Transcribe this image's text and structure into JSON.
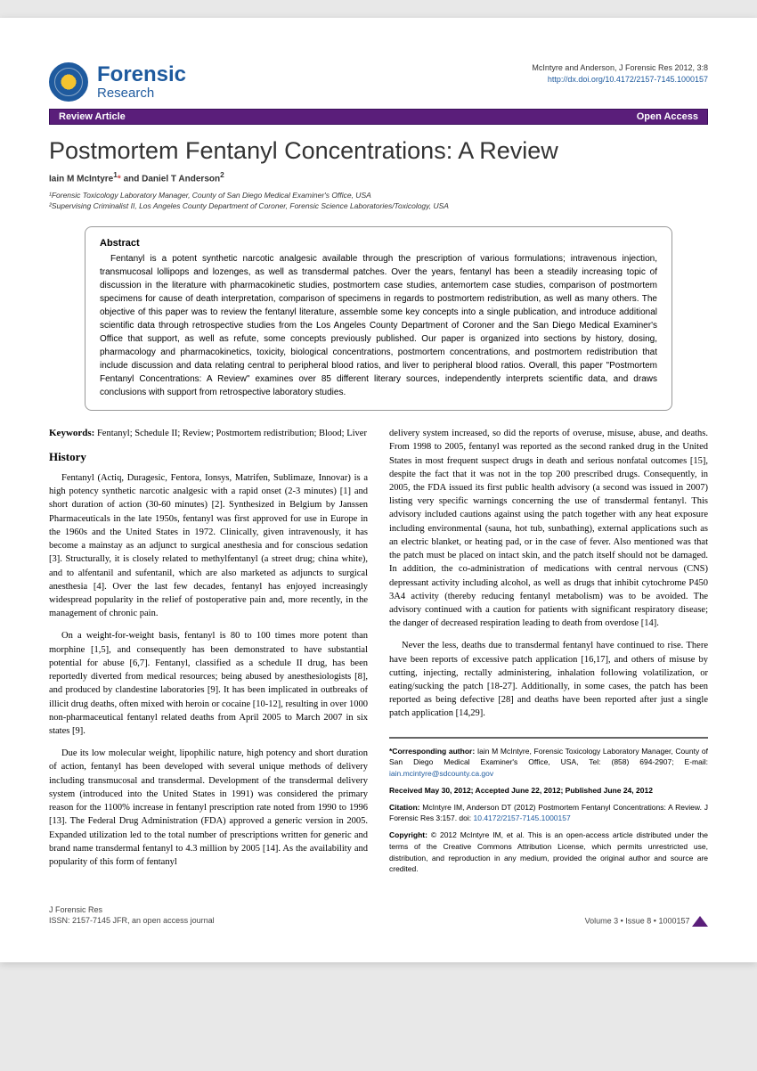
{
  "journal": {
    "main": "Forensic",
    "sub": "Research"
  },
  "citation": {
    "line1": "McIntyre and Anderson, J Forensic Res 2012, 3:8",
    "doi": "http://dx.doi.org/10.4172/2157-7145.1000157"
  },
  "ribbon": {
    "left": "Review Article",
    "right": "Open Access"
  },
  "title": "Postmortem Fentanyl Concentrations: A Review",
  "authors_html": "Iain M McIntyre<sup>1</sup><span class='ast'>*</span> and Daniel T Anderson<sup>2</sup>",
  "affiliations": [
    "¹Forensic Toxicology Laboratory Manager, County of San Diego Medical Examiner's Office, USA",
    "²Supervising Criminalist II, Los Angeles County Department of Coroner, Forensic Science Laboratories/Toxicology, USA"
  ],
  "abstract": {
    "heading": "Abstract",
    "text": "Fentanyl is a potent synthetic narcotic analgesic available through the prescription of various formulations; intravenous injection, transmucosal lollipops and lozenges, as well as transdermal patches. Over the years, fentanyl has been a steadily increasing topic of discussion in the literature with pharmacokinetic studies, postmortem case studies, antemortem case studies, comparison of postmortem specimens for cause of death interpretation, comparison of specimens in regards to postmortem redistribution, as well as many others. The objective of this paper was to review the fentanyl literature, assemble some key concepts into a single publication, and introduce additional scientific data through retrospective studies from the Los Angeles County Department of Coroner and the San Diego Medical Examiner's Office that support, as well as refute, some concepts previously published. Our paper is organized into sections by history, dosing, pharmacology and pharmacokinetics, toxicity, biological concentrations, postmortem concentrations, and postmortem redistribution that include discussion and data relating central to peripheral blood ratios, and liver to peripheral blood ratios. Overall, this paper \"Postmortem Fentanyl Concentrations: A Review\" examines over 85 different literary sources, independently interprets scientific data, and draws conclusions with support from retrospective laboratory studies."
  },
  "keywords": {
    "label": "Keywords:",
    "text": "Fentanyl; Schedule II; Review; Postmortem redistribution; Blood; Liver"
  },
  "history_heading": "History",
  "left_paras": [
    "Fentanyl (Actiq, Duragesic, Fentora, Ionsys, Matrifen, Sublimaze, Innovar) is a high potency synthetic narcotic analgesic with a rapid onset (2-3 minutes) [1] and short duration of action (30-60 minutes) [2]. Synthesized in Belgium by Janssen Pharmaceuticals in the late 1950s, fentanyl was first approved for use in Europe in the 1960s and the United States in 1972. Clinically, given intravenously, it has become a mainstay as an adjunct to surgical anesthesia and for conscious sedation [3]. Structurally, it is closely related to methylfentanyl (a street drug; china white), and to alfentanil and sufentanil, which are also marketed as adjuncts to surgical anesthesia [4]. Over the last few decades, fentanyl has enjoyed increasingly widespread popularity in the relief of postoperative pain and, more recently, in the management of chronic pain.",
    "On a weight-for-weight basis, fentanyl is 80 to 100 times more potent than morphine [1,5], and consequently has been demonstrated to have substantial potential for abuse [6,7]. Fentanyl, classified as a schedule II drug, has been reportedly diverted from medical resources; being abused by anesthesiologists [8], and produced by clandestine laboratories [9]. It has been implicated in outbreaks of illicit drug deaths, often mixed with heroin or cocaine [10-12], resulting in over 1000 non-pharmaceutical fentanyl related deaths from April 2005 to March 2007 in six states [9].",
    "Due its low molecular weight, lipophilic nature, high potency and short duration of action, fentanyl has been developed with several unique methods of delivery including transmucosal and transdermal. Development of the transdermal delivery system (introduced into the United States in 1991) was considered the primary reason for the 1100% increase in fentanyl prescription rate noted from 1990 to 1996 [13]. The Federal Drug Administration (FDA) approved a generic version in 2005. Expanded utilization led to the total number of prescriptions written for generic and brand name transdermal fentanyl to 4.3 million by 2005 [14]. As the availability and popularity of this form of fentanyl"
  ],
  "right_paras": [
    "delivery system increased, so did the reports of overuse, misuse, abuse, and deaths. From 1998 to 2005, fentanyl was reported as the second ranked drug in the United States in most frequent suspect drugs in death and serious nonfatal outcomes [15], despite the fact that it was not in the top 200 prescribed drugs. Consequently, in 2005, the FDA issued its first public health advisory (a second was issued in 2007) listing very specific warnings concerning the use of transdermal fentanyl. This advisory included cautions against using the patch together with any heat exposure including environmental (sauna, hot tub, sunbathing), external applications such as an electric blanket, or heating pad, or in the case of fever. Also mentioned was that the patch must be placed on intact skin, and the patch itself should not be damaged. In addition, the co-administration of medications with central nervous (CNS) depressant activity including alcohol, as well as drugs that inhibit cytochrome P450 3A4 activity (thereby reducing fentanyl metabolism) was to be avoided. The advisory continued with a caution for patients with significant respiratory disease; the danger of decreased respiration leading to death from overdose [14].",
    "Never the less, deaths due to transdermal fentanyl have continued to rise. There have been reports of excessive patch application [16,17], and others of misuse by cutting, injecting, rectally administering, inhalation following volatilization, or eating/sucking the patch [18-27]. Additionally, in some cases, the patch has been reported as being defective [28] and deaths have been reported after just a single patch application [14,29]."
  ],
  "corr": {
    "author_label": "*Corresponding author:",
    "author_text": "Iain M McIntyre, Forensic Toxicology Laboratory Manager, County of San Diego Medical Examiner's Office, USA, Tel: (858) 694-2907; E-mail: ",
    "email": "iain.mcintyre@sdcounty.ca.gov",
    "dates": "Received May 30, 2012; Accepted June 22, 2012; Published June 24, 2012",
    "citation_label": "Citation:",
    "citation_text": "McIntyre IM, Anderson DT (2012) Postmortem Fentanyl Concentrations: A Review. J Forensic Res 3:157. doi:",
    "citation_doi": "10.4172/2157-7145.1000157",
    "copyright_label": "Copyright:",
    "copyright_text": "© 2012 McIntyre IM, et al. This is an open-access article distributed under the terms of the Creative Commons Attribution License, which permits unrestricted use, distribution, and reproduction in any medium, provided the original author and source are credited."
  },
  "footer": {
    "journal": "J Forensic Res",
    "issn": "ISSN: 2157-7145 JFR, an open access journal",
    "right": "Volume 3 • Issue 8 • 1000157"
  }
}
